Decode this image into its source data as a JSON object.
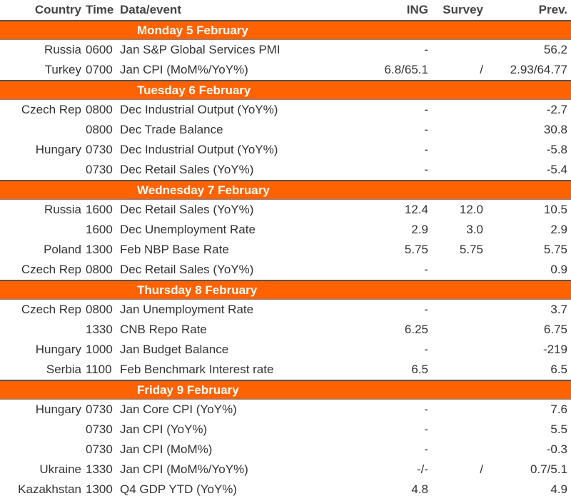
{
  "header": [
    "Country",
    "Time",
    "Data/event",
    "ING",
    "Survey",
    "Prev."
  ],
  "sections": [
    {
      "day": "Monday 5 February",
      "rows": [
        [
          "Russia",
          "0600",
          "Jan S&P Global Services PMI",
          "-",
          null,
          "56.2"
        ],
        [
          "Turkey",
          "0700",
          "Jan CPI (MoM%/YoY%)",
          "6.8/65.1",
          "/",
          "2.93/64.77"
        ]
      ]
    },
    {
      "day": "Tuesday 6 February",
      "rows": [
        [
          "Czech Rep",
          "0800",
          "Dec Industrial Output (YoY%)",
          "-",
          null,
          "-2.7"
        ],
        [
          null,
          "0800",
          "Dec Trade Balance",
          "-",
          null,
          "30.8"
        ],
        [
          "Hungary",
          "0730",
          "Dec Industrial Output (YoY%)",
          "-",
          null,
          "-5.8"
        ],
        [
          null,
          "0730",
          "Dec Retail Sales (YoY%)",
          "-",
          null,
          "-5.4"
        ]
      ]
    },
    {
      "day": "Wednesday 7 February",
      "rows": [
        [
          "Russia",
          "1600",
          "Dec Retail Sales (YoY%)",
          "12.4",
          "12.0",
          "10.5"
        ],
        [
          null,
          "1600",
          "Dec Unemployment Rate",
          "2.9",
          "3.0",
          "2.9"
        ],
        [
          "Poland",
          "1300",
          "Feb NBP Base Rate",
          "5.75",
          "5.75",
          "5.75"
        ],
        [
          "Czech Rep",
          "0800",
          "Dec Retail Sales (YoY%)",
          "-",
          null,
          "0.9"
        ]
      ]
    },
    {
      "day": "Thursday 8 February",
      "rows": [
        [
          "Czech Rep",
          "0800",
          "Jan Unemployment Rate",
          "-",
          null,
          "3.7"
        ],
        [
          null,
          "1330",
          "CNB Repo Rate",
          "6.25",
          null,
          "6.75"
        ],
        [
          "Hungary",
          "1000",
          "Jan Budget Balance",
          "-",
          null,
          "-219"
        ],
        [
          "Serbia",
          "1100",
          "Feb Benchmark Interest rate",
          "6.5",
          null,
          "6.5"
        ]
      ]
    },
    {
      "day": "Friday 9 February",
      "rows": [
        [
          "Hungary",
          "0730",
          "Jan Core CPI (YoY%)",
          "-",
          null,
          "7.6"
        ],
        [
          null,
          "0730",
          "Jan CPI (YoY%)",
          "-",
          null,
          "5.5"
        ],
        [
          null,
          "0730",
          "Jan CPI (MoM%)",
          "-",
          null,
          "-0.3"
        ],
        [
          "Ukraine",
          "1330",
          "Jan CPI (MoM%/YoY%)",
          "-/-",
          "/",
          "0.7/5.1"
        ],
        [
          "Kazakhstan",
          "1300",
          "Q4 GDP YTD (YoY%)",
          "4.8",
          null,
          "4.9"
        ]
      ]
    }
  ]
}
